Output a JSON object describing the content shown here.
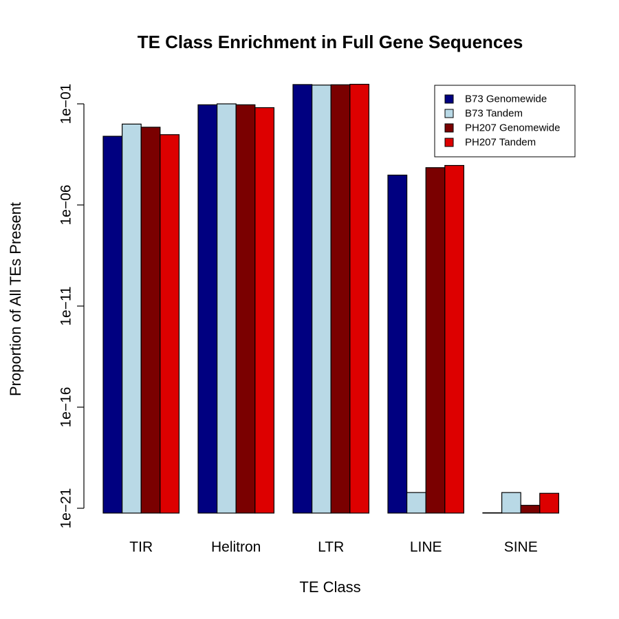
{
  "chart_data": {
    "type": "bar",
    "title": "TE Class Enrichment in Full Gene Sequences",
    "xlabel": "TE Class",
    "ylabel": "Proportion of All TEs Present",
    "y_scale": "log10",
    "ylim": [
      1e-21,
      1
    ],
    "y_ticks": [
      {
        "value": 0.1,
        "label": "1e−01"
      },
      {
        "value": 1e-06,
        "label": "1e−06"
      },
      {
        "value": 1e-11,
        "label": "1e−11"
      },
      {
        "value": 1e-16,
        "label": "1e−16"
      },
      {
        "value": 1e-21,
        "label": "1e−21"
      }
    ],
    "categories": [
      "TIR",
      "Helitron",
      "LTR",
      "LINE",
      "SINE"
    ],
    "series": [
      {
        "name": "B73 Genomewide",
        "color": "#000080",
        "values": [
          0.0025,
          0.09,
          0.9,
          3e-05,
          6e-22
        ]
      },
      {
        "name": "B73 Tandem",
        "color": "#B9D9E6",
        "values": [
          0.01,
          0.1,
          0.85,
          6e-21,
          6e-21
        ]
      },
      {
        "name": "PH207 Genomewide",
        "color": "#7A0000",
        "values": [
          0.007,
          0.09,
          0.88,
          7e-05,
          1.4e-21
        ]
      },
      {
        "name": "PH207 Tandem",
        "color": "#DD0000",
        "values": [
          0.003,
          0.065,
          0.93,
          9e-05,
          5.5e-21
        ]
      }
    ],
    "legend_position": "top-right",
    "grid": false
  }
}
